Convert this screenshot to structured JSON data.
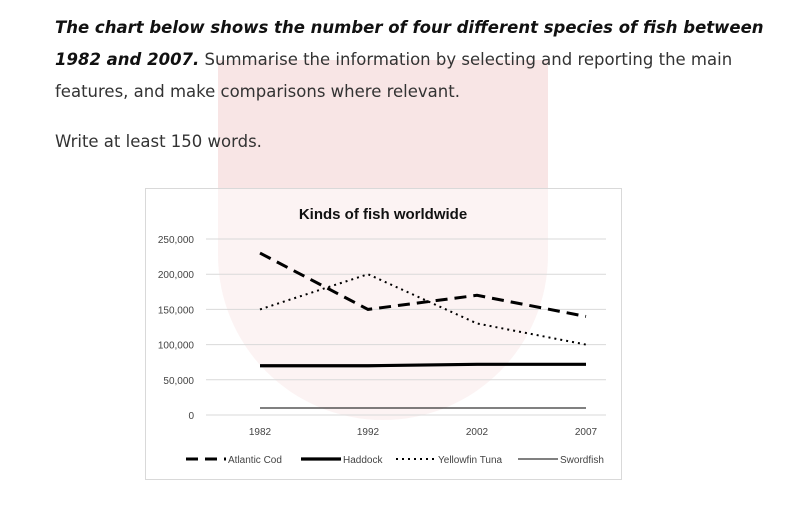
{
  "prompt": {
    "bold": "The chart below shows the number of four different species of fish between 1982 and 2007.",
    "rest": " Summarise the information by selecting and reporting the main features, and make comparisons where relevant.",
    "write": "Write at least 150 words."
  },
  "chart_data": {
    "type": "line",
    "title": "Kinds of fish worldwide",
    "categories": [
      "1982",
      "1992",
      "2002",
      "2007"
    ],
    "yticks": [
      "0",
      "50,000",
      "100,000",
      "150,000",
      "200,000",
      "250,000"
    ],
    "ylim": [
      0,
      250000
    ],
    "grid": true,
    "legend": "bottom",
    "series": [
      {
        "name": "Atlantic Cod",
        "style": "dashed",
        "values": [
          230000,
          150000,
          170000,
          140000
        ]
      },
      {
        "name": "Haddock",
        "style": "thick",
        "values": [
          70000,
          70000,
          72000,
          72000
        ]
      },
      {
        "name": "Yellowfin Tuna",
        "style": "dotted",
        "values": [
          150000,
          200000,
          130000,
          100000
        ]
      },
      {
        "name": "Swordfish",
        "style": "thin",
        "values": [
          10000,
          10000,
          10000,
          10000
        ]
      }
    ]
  }
}
